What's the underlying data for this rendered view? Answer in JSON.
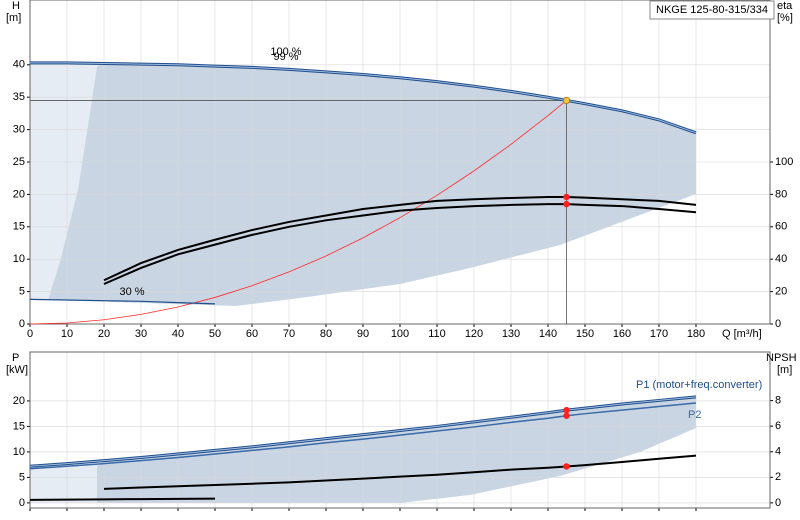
{
  "title": "NKGE 125-80-315/334",
  "chart_data": [
    {
      "type": "line",
      "ylabel": "H",
      "yunit": "[m]",
      "y2label": "eta",
      "y2unit": "[%]",
      "xlabel": "Q [m³/h]",
      "annotations": [
        "100 %",
        "99 %",
        "30 %"
      ],
      "x": [
        0,
        10,
        20,
        30,
        40,
        50,
        60,
        70,
        80,
        90,
        100,
        110,
        120,
        130,
        140,
        145,
        150,
        160,
        170,
        180
      ],
      "xlim": [
        0,
        200
      ],
      "xticks": [
        0,
        10,
        20,
        30,
        40,
        50,
        60,
        70,
        80,
        90,
        100,
        110,
        120,
        130,
        140,
        150,
        160,
        170,
        180
      ],
      "xtick_labels": true,
      "ylim": [
        0,
        50
      ],
      "yticks": [
        0,
        5,
        10,
        15,
        20,
        25,
        30,
        35,
        40
      ],
      "y2lim": [
        0,
        200
      ],
      "y2ticks": [
        0,
        20,
        40,
        60,
        80,
        100
      ],
      "grid": true,
      "operating_point": {
        "x": 145,
        "y": 34.5
      },
      "series": [
        {
          "color": "#1f4e8c",
          "linewidth": 3,
          "marker_color": "#f5c542",
          "values": [
            40.3,
            40.3,
            40.2,
            40.1,
            40.0,
            39.8,
            39.6,
            39.3,
            38.9,
            38.5,
            38.0,
            37.4,
            36.7,
            35.9,
            35.0,
            34.5,
            34.0,
            32.9,
            31.5,
            29.5
          ]
        },
        {
          "color": "#ff2a2a",
          "linewidth": 0.8,
          "values": [
            0,
            0.16,
            0.66,
            1.48,
            2.63,
            4.1,
            5.91,
            8.04,
            10.5,
            13.29,
            16.41,
            19.86,
            23.63,
            27.73,
            32.16,
            34.5,
            null,
            null,
            null,
            null
          ]
        },
        {
          "color": "#1f4e8c",
          "linewidth": 1.2,
          "values": [
            3.8,
            3.7,
            3.6,
            3.5,
            3.3,
            3.1,
            null,
            null,
            null,
            null,
            null,
            null,
            null,
            null,
            null,
            null,
            null,
            null,
            null,
            null
          ]
        },
        {
          "color": "#000000",
          "linewidth": 2,
          "axis": "y2",
          "marker_color": "#ff2020",
          "values": [
            null,
            null,
            27,
            37.6,
            45.7,
            52,
            58,
            63,
            67,
            71,
            73.5,
            76,
            77,
            77.8,
            78.4,
            78.4,
            78,
            77,
            76,
            73.5
          ]
        },
        {
          "color": "#000000",
          "linewidth": 2,
          "axis": "y2",
          "marker_color": "#ff2020",
          "values": [
            null,
            null,
            24.7,
            34.6,
            43,
            49,
            55,
            60,
            64,
            67,
            70,
            71.6,
            72.8,
            73.5,
            74,
            74,
            73.5,
            72.8,
            71,
            69
          ]
        }
      ]
    },
    {
      "type": "line",
      "ylabel": "P",
      "yunit": "[kW]",
      "y2label": "NPSH",
      "y2unit": "[m]",
      "x": [
        0,
        10,
        20,
        30,
        40,
        50,
        60,
        70,
        80,
        90,
        100,
        110,
        120,
        130,
        140,
        145,
        150,
        160,
        170,
        180
      ],
      "xlim": [
        0,
        200
      ],
      "xticks": [
        0,
        10,
        20,
        30,
        40,
        50,
        60,
        70,
        80,
        90,
        100,
        110,
        120,
        130,
        140,
        150,
        160,
        170,
        180
      ],
      "xtick_labels": false,
      "ylim": [
        -1,
        29.6
      ],
      "yticks": [
        0,
        5,
        10,
        15,
        20
      ],
      "y2lim": [
        -0.4,
        11.8
      ],
      "y2ticks": [
        0,
        2,
        4,
        6,
        8
      ],
      "grid": true,
      "series": [
        {
          "name": "P1 (motor+freq.converter)",
          "color": "#1f4e8c",
          "linewidth": 3,
          "marker_color": "#ff2020",
          "values": [
            7.2,
            7.7,
            8.3,
            8.9,
            9.6,
            10.3,
            11.0,
            11.8,
            12.6,
            13.4,
            14.2,
            15.0,
            15.9,
            16.8,
            17.7,
            18.2,
            18.6,
            19.4,
            20.1,
            20.8
          ]
        },
        {
          "name": "P2",
          "color": "#3a6aa8",
          "linewidth": 1.5,
          "marker_color": "#ff2020",
          "values": [
            6.7,
            7.2,
            7.7,
            8.3,
            8.9,
            9.6,
            10.3,
            11.0,
            11.8,
            12.5,
            13.3,
            14.1,
            14.9,
            15.8,
            16.6,
            17.1,
            17.5,
            18.2,
            18.9,
            19.6
          ]
        },
        {
          "color": "#000000",
          "linewidth": 2,
          "axis": "y2",
          "marker_color": "#ff2020",
          "values": [
            null,
            null,
            1.1,
            1.2,
            1.3,
            1.4,
            1.5,
            1.6,
            1.75,
            1.9,
            2.05,
            2.2,
            2.4,
            2.6,
            2.75,
            2.85,
            2.95,
            3.2,
            3.45,
            3.7
          ]
        },
        {
          "color": "#000000",
          "linewidth": 2,
          "values": [
            0.6,
            0.65,
            0.7,
            0.75,
            0.8,
            0.85,
            null,
            null,
            null,
            null,
            null,
            null,
            null,
            null,
            null,
            null,
            null,
            null,
            null,
            null
          ]
        }
      ]
    }
  ]
}
